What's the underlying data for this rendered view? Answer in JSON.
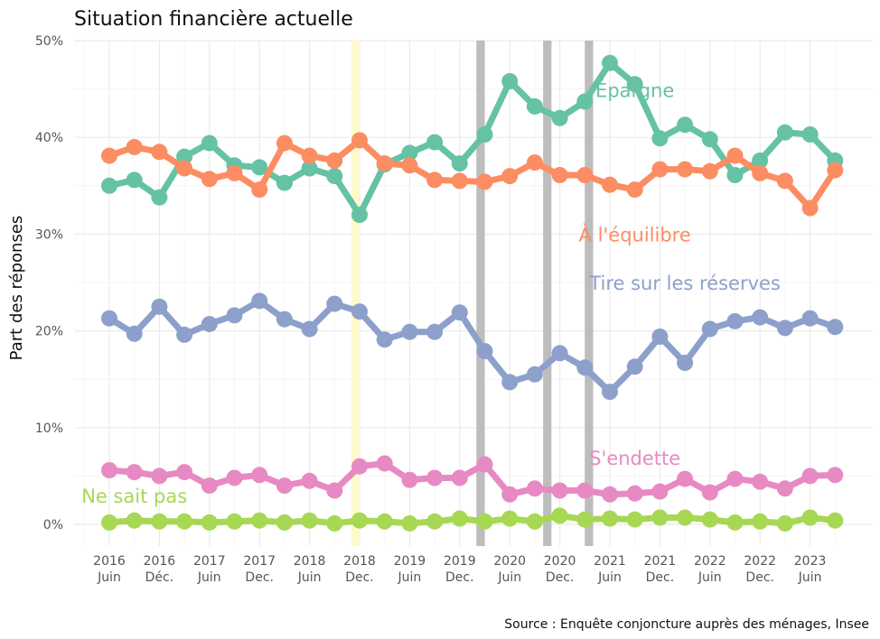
{
  "chart_data": {
    "type": "line",
    "title": "Situation financière actuelle",
    "ylabel": "Part des réponses",
    "xlabel": "",
    "caption": "Source : Enquête conjoncture auprès des ménages, Insee",
    "ylim": [
      0,
      50
    ],
    "yticks": [
      0,
      10,
      20,
      30,
      40,
      50
    ],
    "ytick_labels": [
      "0%",
      "10%",
      "20%",
      "30%",
      "40%",
      "50%"
    ],
    "grid": true,
    "x": [
      "2016-06",
      "2016-09",
      "2016-12",
      "2017-03",
      "2017-06",
      "2017-09",
      "2017-12",
      "2018-03",
      "2018-06",
      "2018-09",
      "2018-12",
      "2019-03",
      "2019-06",
      "2019-09",
      "2019-12",
      "2020-03",
      "2020-06",
      "2020-09",
      "2020-12",
      "2021-03",
      "2021-06",
      "2021-09",
      "2021-12",
      "2022-03",
      "2022-06",
      "2022-09",
      "2022-12",
      "2023-03",
      "2023-06",
      "2023-09"
    ],
    "xticks": [
      {
        "at": "2016-06",
        "year": "2016",
        "period": "Juin"
      },
      {
        "at": "2016-12",
        "year": "2016",
        "period": "Déc."
      },
      {
        "at": "2017-06",
        "year": "2017",
        "period": "Juin"
      },
      {
        "at": "2017-12",
        "year": "2017",
        "period": "Dec."
      },
      {
        "at": "2018-06",
        "year": "2018",
        "period": "Juin"
      },
      {
        "at": "2018-12",
        "year": "2018",
        "period": "Dec."
      },
      {
        "at": "2019-06",
        "year": "2019",
        "period": "Juin"
      },
      {
        "at": "2019-12",
        "year": "2019",
        "period": "Dec."
      },
      {
        "at": "2020-06",
        "year": "2020",
        "period": "Juin"
      },
      {
        "at": "2020-12",
        "year": "2020",
        "period": "Dec."
      },
      {
        "at": "2021-06",
        "year": "2021",
        "period": "Juin"
      },
      {
        "at": "2021-12",
        "year": "2021",
        "period": "Dec."
      },
      {
        "at": "2022-06",
        "year": "2022",
        "period": "Juin"
      },
      {
        "at": "2022-12",
        "year": "2022",
        "period": "Dec."
      },
      {
        "at": "2023-06",
        "year": "2023",
        "period": "Juin"
      }
    ],
    "shaded_periods": [
      {
        "from": "2018-11",
        "to": "2018-12",
        "color": "#fffacd"
      },
      {
        "from": "2020-02",
        "to": "2020-03",
        "color": "#bdbdbd"
      },
      {
        "from": "2020-10",
        "to": "2020-11",
        "color": "#bdbdbd"
      },
      {
        "from": "2021-03",
        "to": "2021-04",
        "color": "#bdbdbd"
      }
    ],
    "series": [
      {
        "name": "Épargne",
        "color": "#66c2a5",
        "label_anchor": "2021-09",
        "label_value": 44.8,
        "values": [
          35.0,
          35.6,
          33.8,
          38.0,
          39.4,
          37.1,
          36.9,
          35.3,
          36.8,
          36.0,
          32.0,
          37.2,
          38.4,
          39.5,
          37.3,
          40.3,
          45.8,
          43.2,
          42.0,
          43.7,
          47.7,
          45.5,
          39.9,
          41.3,
          39.8,
          36.1,
          37.6,
          40.5,
          40.3,
          37.6
        ]
      },
      {
        "name": "À l'équilibre",
        "color": "#fc8d62",
        "label_anchor": "2021-09",
        "label_value": 29.9,
        "values": [
          38.1,
          39.0,
          38.5,
          36.8,
          35.7,
          36.3,
          34.6,
          39.4,
          38.1,
          37.6,
          39.7,
          37.3,
          37.1,
          35.6,
          35.5,
          35.4,
          36.0,
          37.4,
          36.1,
          36.1,
          35.1,
          34.6,
          36.7,
          36.7,
          36.5,
          38.1,
          36.3,
          35.5,
          32.7,
          36.6
        ]
      },
      {
        "name": "Tire sur les réserves",
        "color": "#8da0cb",
        "label_anchor": "2022-03",
        "label_value": 24.9,
        "values": [
          21.3,
          19.7,
          22.5,
          19.6,
          20.7,
          21.6,
          23.1,
          21.2,
          20.2,
          22.8,
          22.0,
          19.1,
          19.9,
          19.9,
          21.9,
          17.9,
          14.7,
          15.5,
          17.7,
          16.2,
          13.7,
          16.3,
          19.4,
          16.7,
          20.2,
          21.0,
          21.4,
          20.3,
          21.3,
          20.4
        ]
      },
      {
        "name": "S'endette",
        "color": "#e78ac3",
        "label_anchor": "2021-09",
        "label_value": 6.8,
        "values": [
          5.6,
          5.4,
          5.0,
          5.4,
          4.0,
          4.8,
          5.1,
          4.0,
          4.5,
          3.5,
          6.0,
          6.3,
          4.6,
          4.8,
          4.8,
          6.2,
          3.1,
          3.7,
          3.5,
          3.5,
          3.1,
          3.2,
          3.4,
          4.7,
          3.3,
          4.7,
          4.4,
          3.7,
          5.0,
          5.1
        ]
      },
      {
        "name": "Ne sait pas",
        "color": "#a6d854",
        "label_anchor": "2016-09",
        "label_value": 2.9,
        "values": [
          0.2,
          0.4,
          0.3,
          0.3,
          0.2,
          0.3,
          0.4,
          0.2,
          0.4,
          0.1,
          0.4,
          0.3,
          0.1,
          0.3,
          0.6,
          0.3,
          0.6,
          0.3,
          0.9,
          0.5,
          0.6,
          0.5,
          0.7,
          0.7,
          0.5,
          0.2,
          0.3,
          0.1,
          0.7,
          0.4
        ]
      }
    ]
  }
}
